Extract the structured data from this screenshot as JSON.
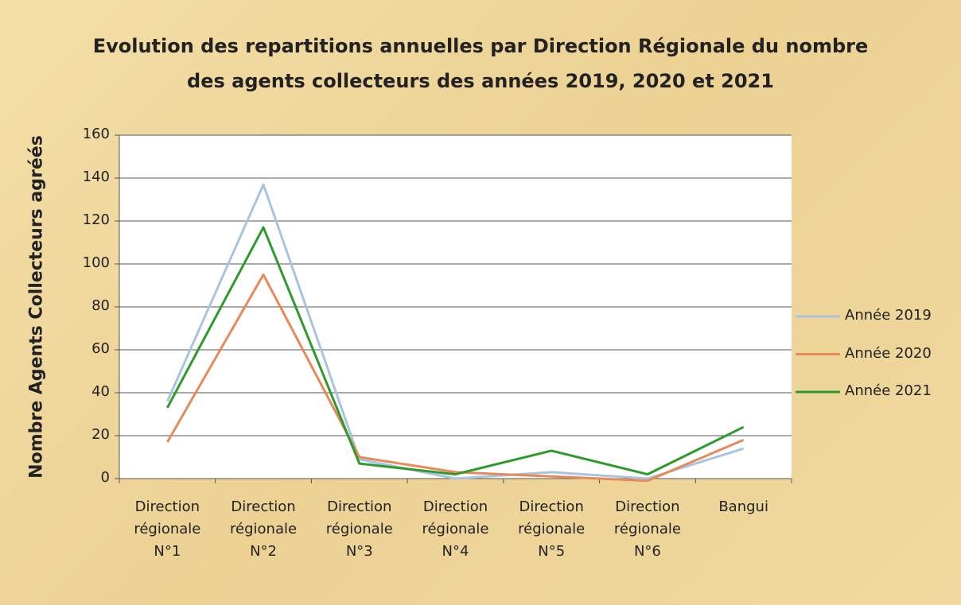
{
  "chart_data": {
    "type": "line",
    "title": [
      "Evolution des repartitions annuelles par Direction Régionale du nombre",
      "des agents collecteurs des années 2019, 2020  et 2021"
    ],
    "y_label": "Nombre Agents Collecteurs agréés",
    "categories": [
      "Direction régionale N°1",
      "Direction régionale N°2",
      "Direction régionale N°3",
      "Direction régionale N°4",
      "Direction régionale N°5",
      "Direction régionale N°6",
      "Bangui"
    ],
    "series": [
      {
        "name": "Année 2019",
        "color": "#a9c4e0",
        "values": [
          36,
          137,
          9,
          0,
          3,
          0,
          14
        ]
      },
      {
        "name": "Année 2020",
        "color": "#e8895a",
        "values": [
          17,
          95,
          10,
          3,
          1,
          -1,
          18
        ]
      },
      {
        "name": "Année 2021",
        "color": "#2e9a2e",
        "values": [
          33,
          117,
          7,
          2,
          13,
          2,
          24
        ]
      }
    ],
    "ylim": [
      0,
      160
    ],
    "yticks": [
      0,
      20,
      40,
      60,
      80,
      100,
      120,
      140,
      160
    ],
    "grid": true,
    "legend": "right"
  }
}
